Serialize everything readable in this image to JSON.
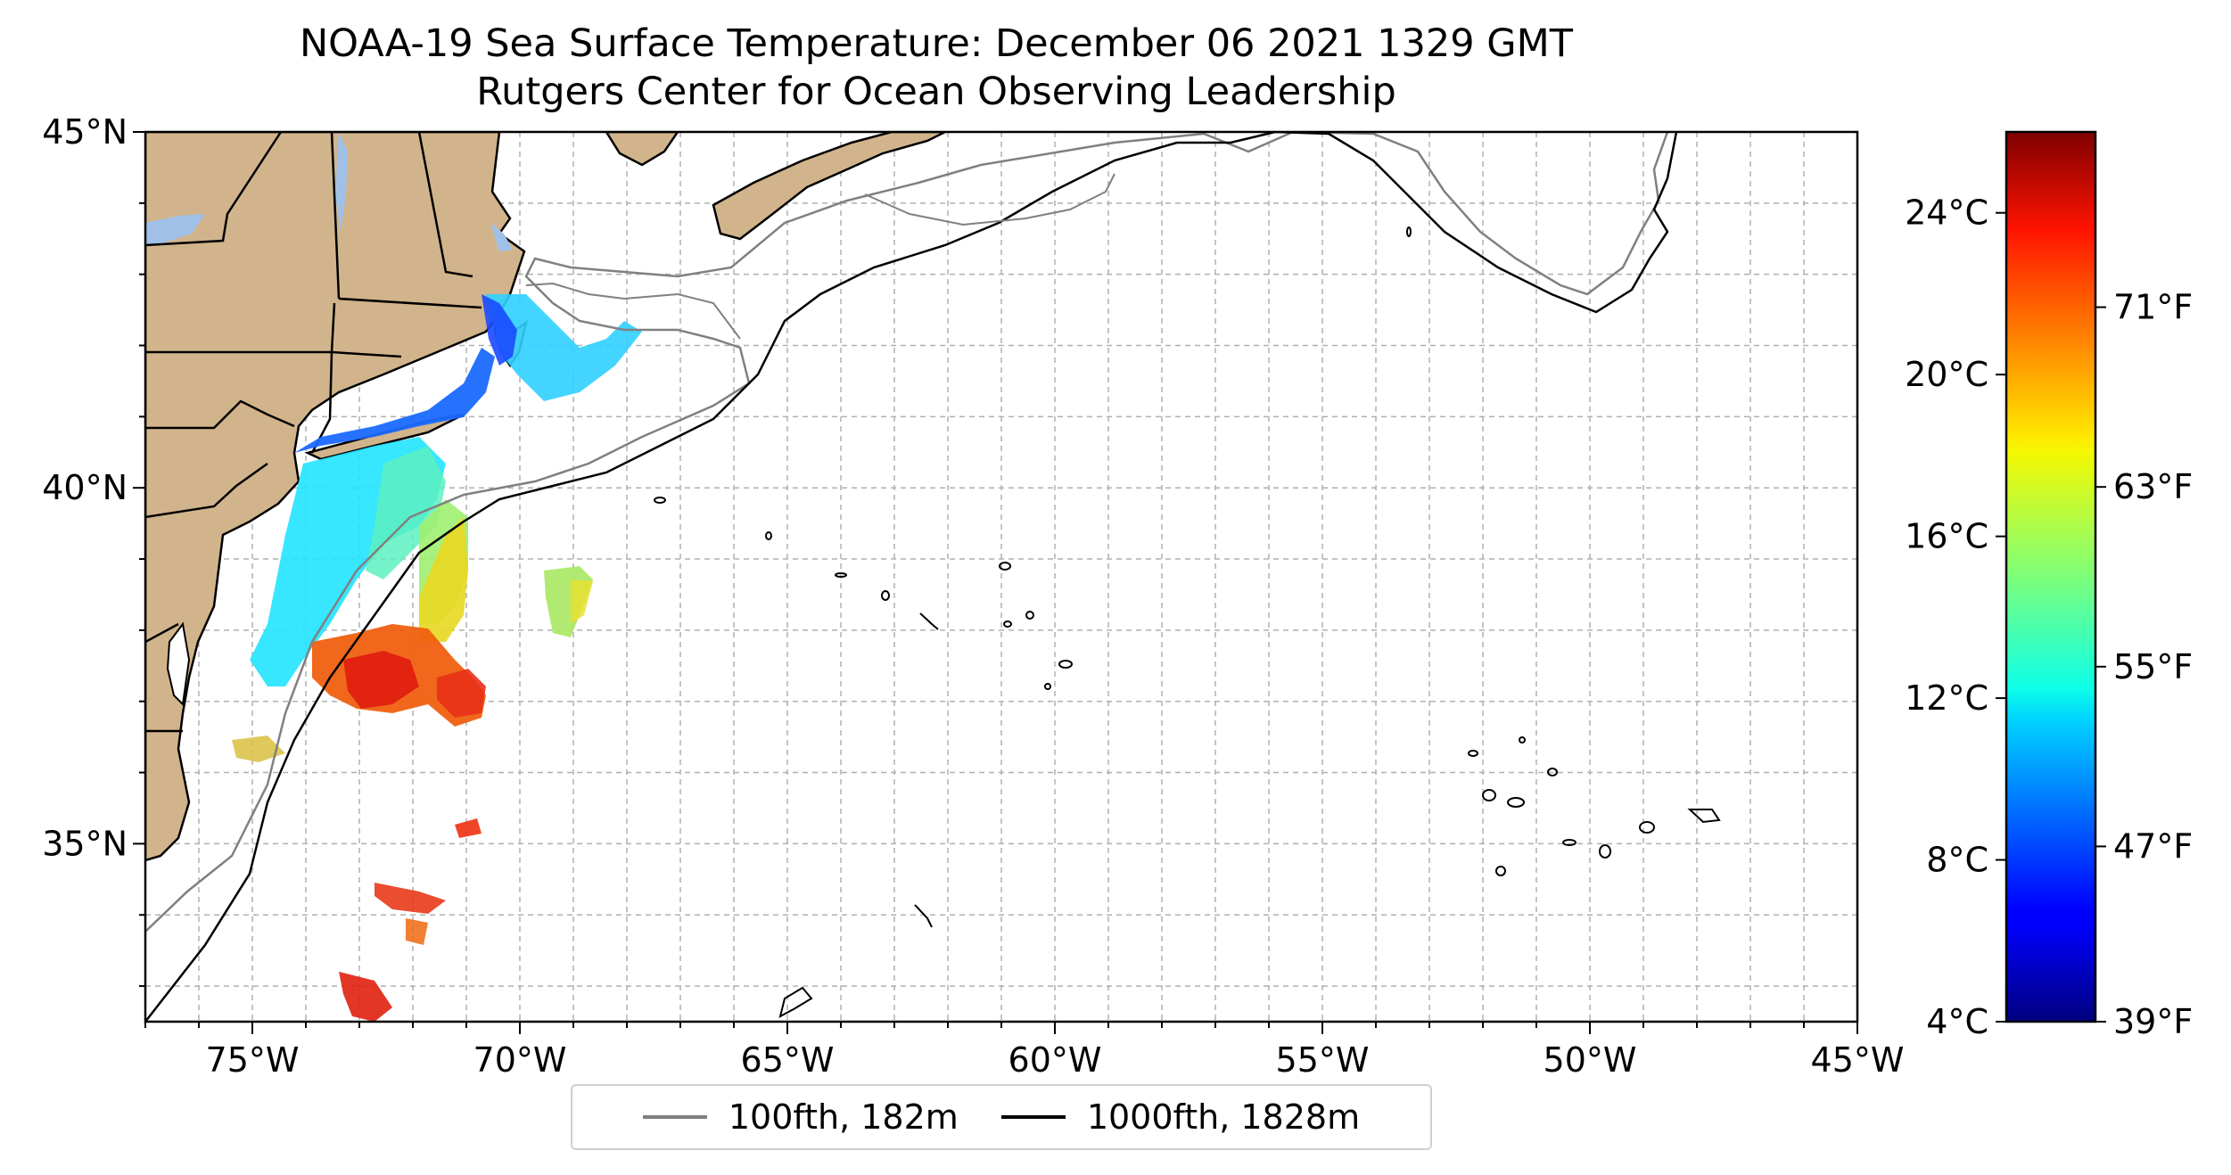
{
  "title": {
    "line1": "NOAA-19 Sea Surface Temperature: December 06 2021 1329 GMT",
    "line2": "Rutgers Center for Ocean Observing Leadership"
  },
  "map": {
    "lon_range": [
      -77,
      -45
    ],
    "lat_range": [
      32.5,
      45
    ],
    "x_ticks": [
      "75°W",
      "70°W",
      "65°W",
      "60°W",
      "55°W",
      "50°W",
      "45°W"
    ],
    "y_ticks": [
      "35°N",
      "40°N",
      "45°N"
    ],
    "land_color": "#d2b48c",
    "water_color": "#a0c0e8",
    "grid": true
  },
  "colorbar": {
    "colormap": "jet",
    "celsius_ticks": [
      "4°C",
      "8°C",
      "12°C",
      "16°C",
      "20°C",
      "24°C"
    ],
    "fahrenheit_ticks": [
      "39°F",
      "47°F",
      "55°F",
      "63°F",
      "71°F"
    ],
    "range_c": [
      4,
      26
    ]
  },
  "legend": {
    "items": [
      {
        "label": "100fth, 182m",
        "color": "#808080"
      },
      {
        "label": "1000fth, 1828m",
        "color": "#000000"
      }
    ],
    "placement": "bottom-center"
  }
}
